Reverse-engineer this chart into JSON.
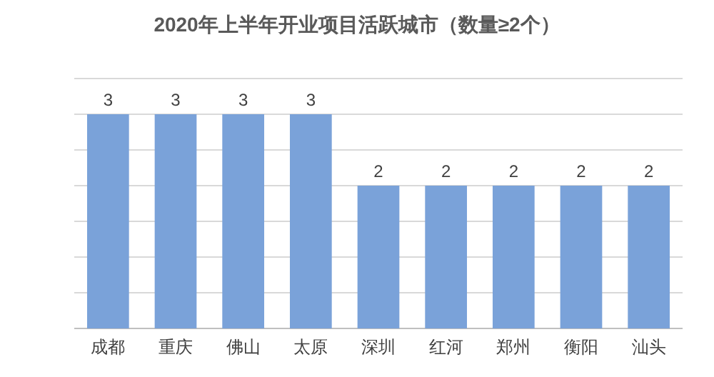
{
  "chart_data": {
    "type": "bar",
    "title": "2020年上半年开业项目活跃城市（数量≥2个）",
    "categories": [
      "成都",
      "重庆",
      "佛山",
      "太原",
      "深圳",
      "红河",
      "郑州",
      "衡阳",
      "汕头"
    ],
    "values": [
      3,
      3,
      3,
      3,
      2,
      2,
      2,
      2,
      2
    ],
    "color": "#7aa2d9",
    "data_labels": true,
    "grid": "y",
    "tick_labels": "x",
    "ylim": [
      0,
      3.5
    ],
    "yticks": [
      {
        "value": 0,
        "label": null
      },
      {
        "value": 0.5,
        "label": null
      },
      {
        "value": 1,
        "label": null
      },
      {
        "value": 1.5,
        "label": null
      },
      {
        "value": 2,
        "label": null
      },
      {
        "value": 2.5,
        "label": null
      },
      {
        "value": 3,
        "label": null
      },
      {
        "value": 3.5,
        "label": null
      }
    ]
  }
}
